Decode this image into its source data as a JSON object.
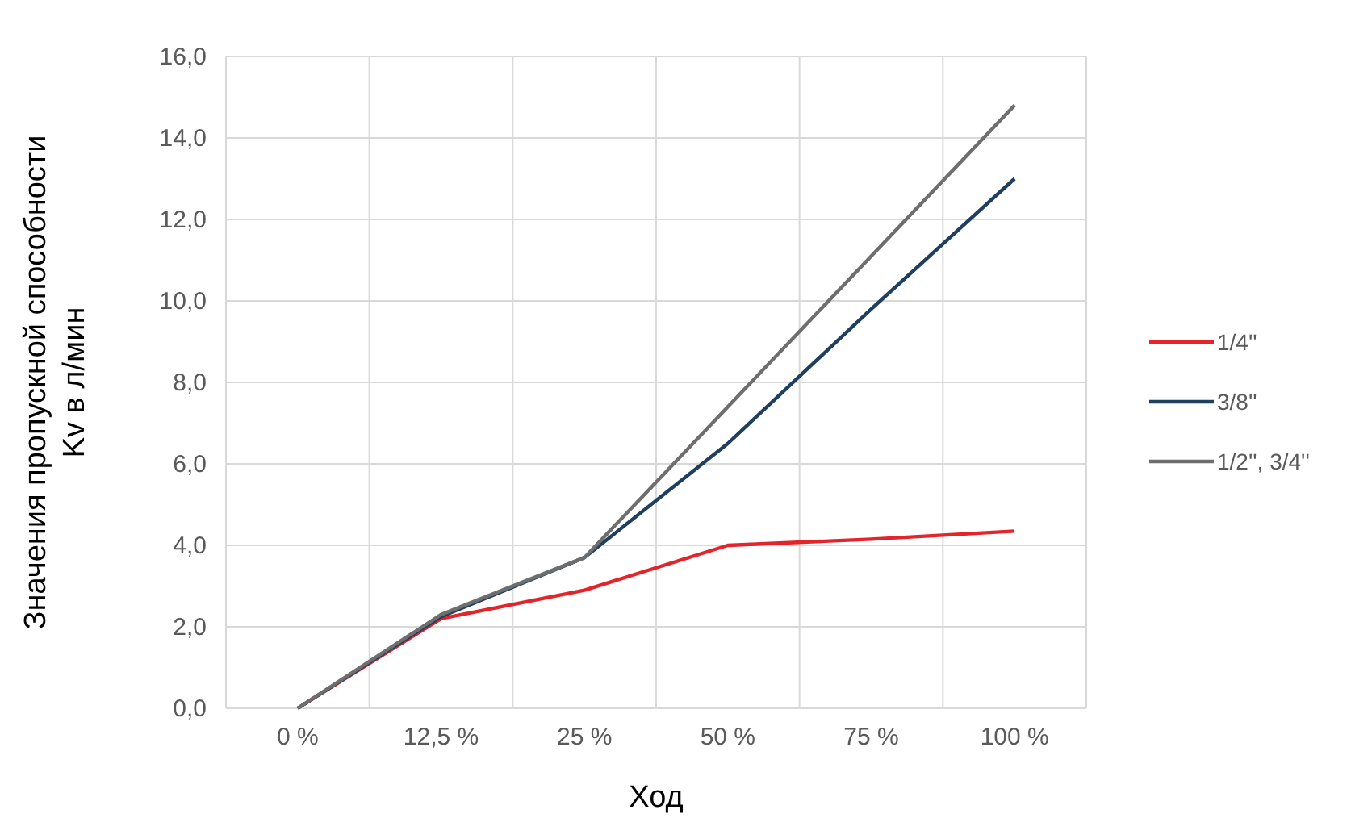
{
  "chart_data": {
    "type": "line",
    "xlabel": "Ход",
    "ylabel": "Значения пропускной способности\nKv в л/мин",
    "categories": [
      "0 %",
      "12,5 %",
      "25 %",
      "50 %",
      "75 %",
      "100 %"
    ],
    "series": [
      {
        "name": "1/4''",
        "color": "#e3242b",
        "values": [
          0,
          2.2,
          2.9,
          4.0,
          4.15,
          4.35
        ]
      },
      {
        "name": "3/8''",
        "color": "#1f3f5f",
        "values": [
          0,
          2.25,
          3.7,
          6.5,
          9.8,
          13.0
        ]
      },
      {
        "name": "1/2'', 3/4''",
        "color": "#6e6e6e",
        "values": [
          0,
          2.3,
          3.7,
          7.4,
          11.1,
          14.8
        ]
      }
    ],
    "ylim": [
      0,
      16
    ],
    "yticks": [
      {
        "value": 0,
        "label": "0,0"
      },
      {
        "value": 2,
        "label": "2,0"
      },
      {
        "value": 4,
        "label": "4,0"
      },
      {
        "value": 6,
        "label": "6,0"
      },
      {
        "value": 8,
        "label": "8,0"
      },
      {
        "value": 10,
        "label": "10,0"
      },
      {
        "value": 12,
        "label": "12,0"
      },
      {
        "value": 14,
        "label": "14,0"
      },
      {
        "value": 16,
        "label": "16,0"
      }
    ],
    "grid": true,
    "legend": "right",
    "marker": "none",
    "line_style": "solid"
  }
}
